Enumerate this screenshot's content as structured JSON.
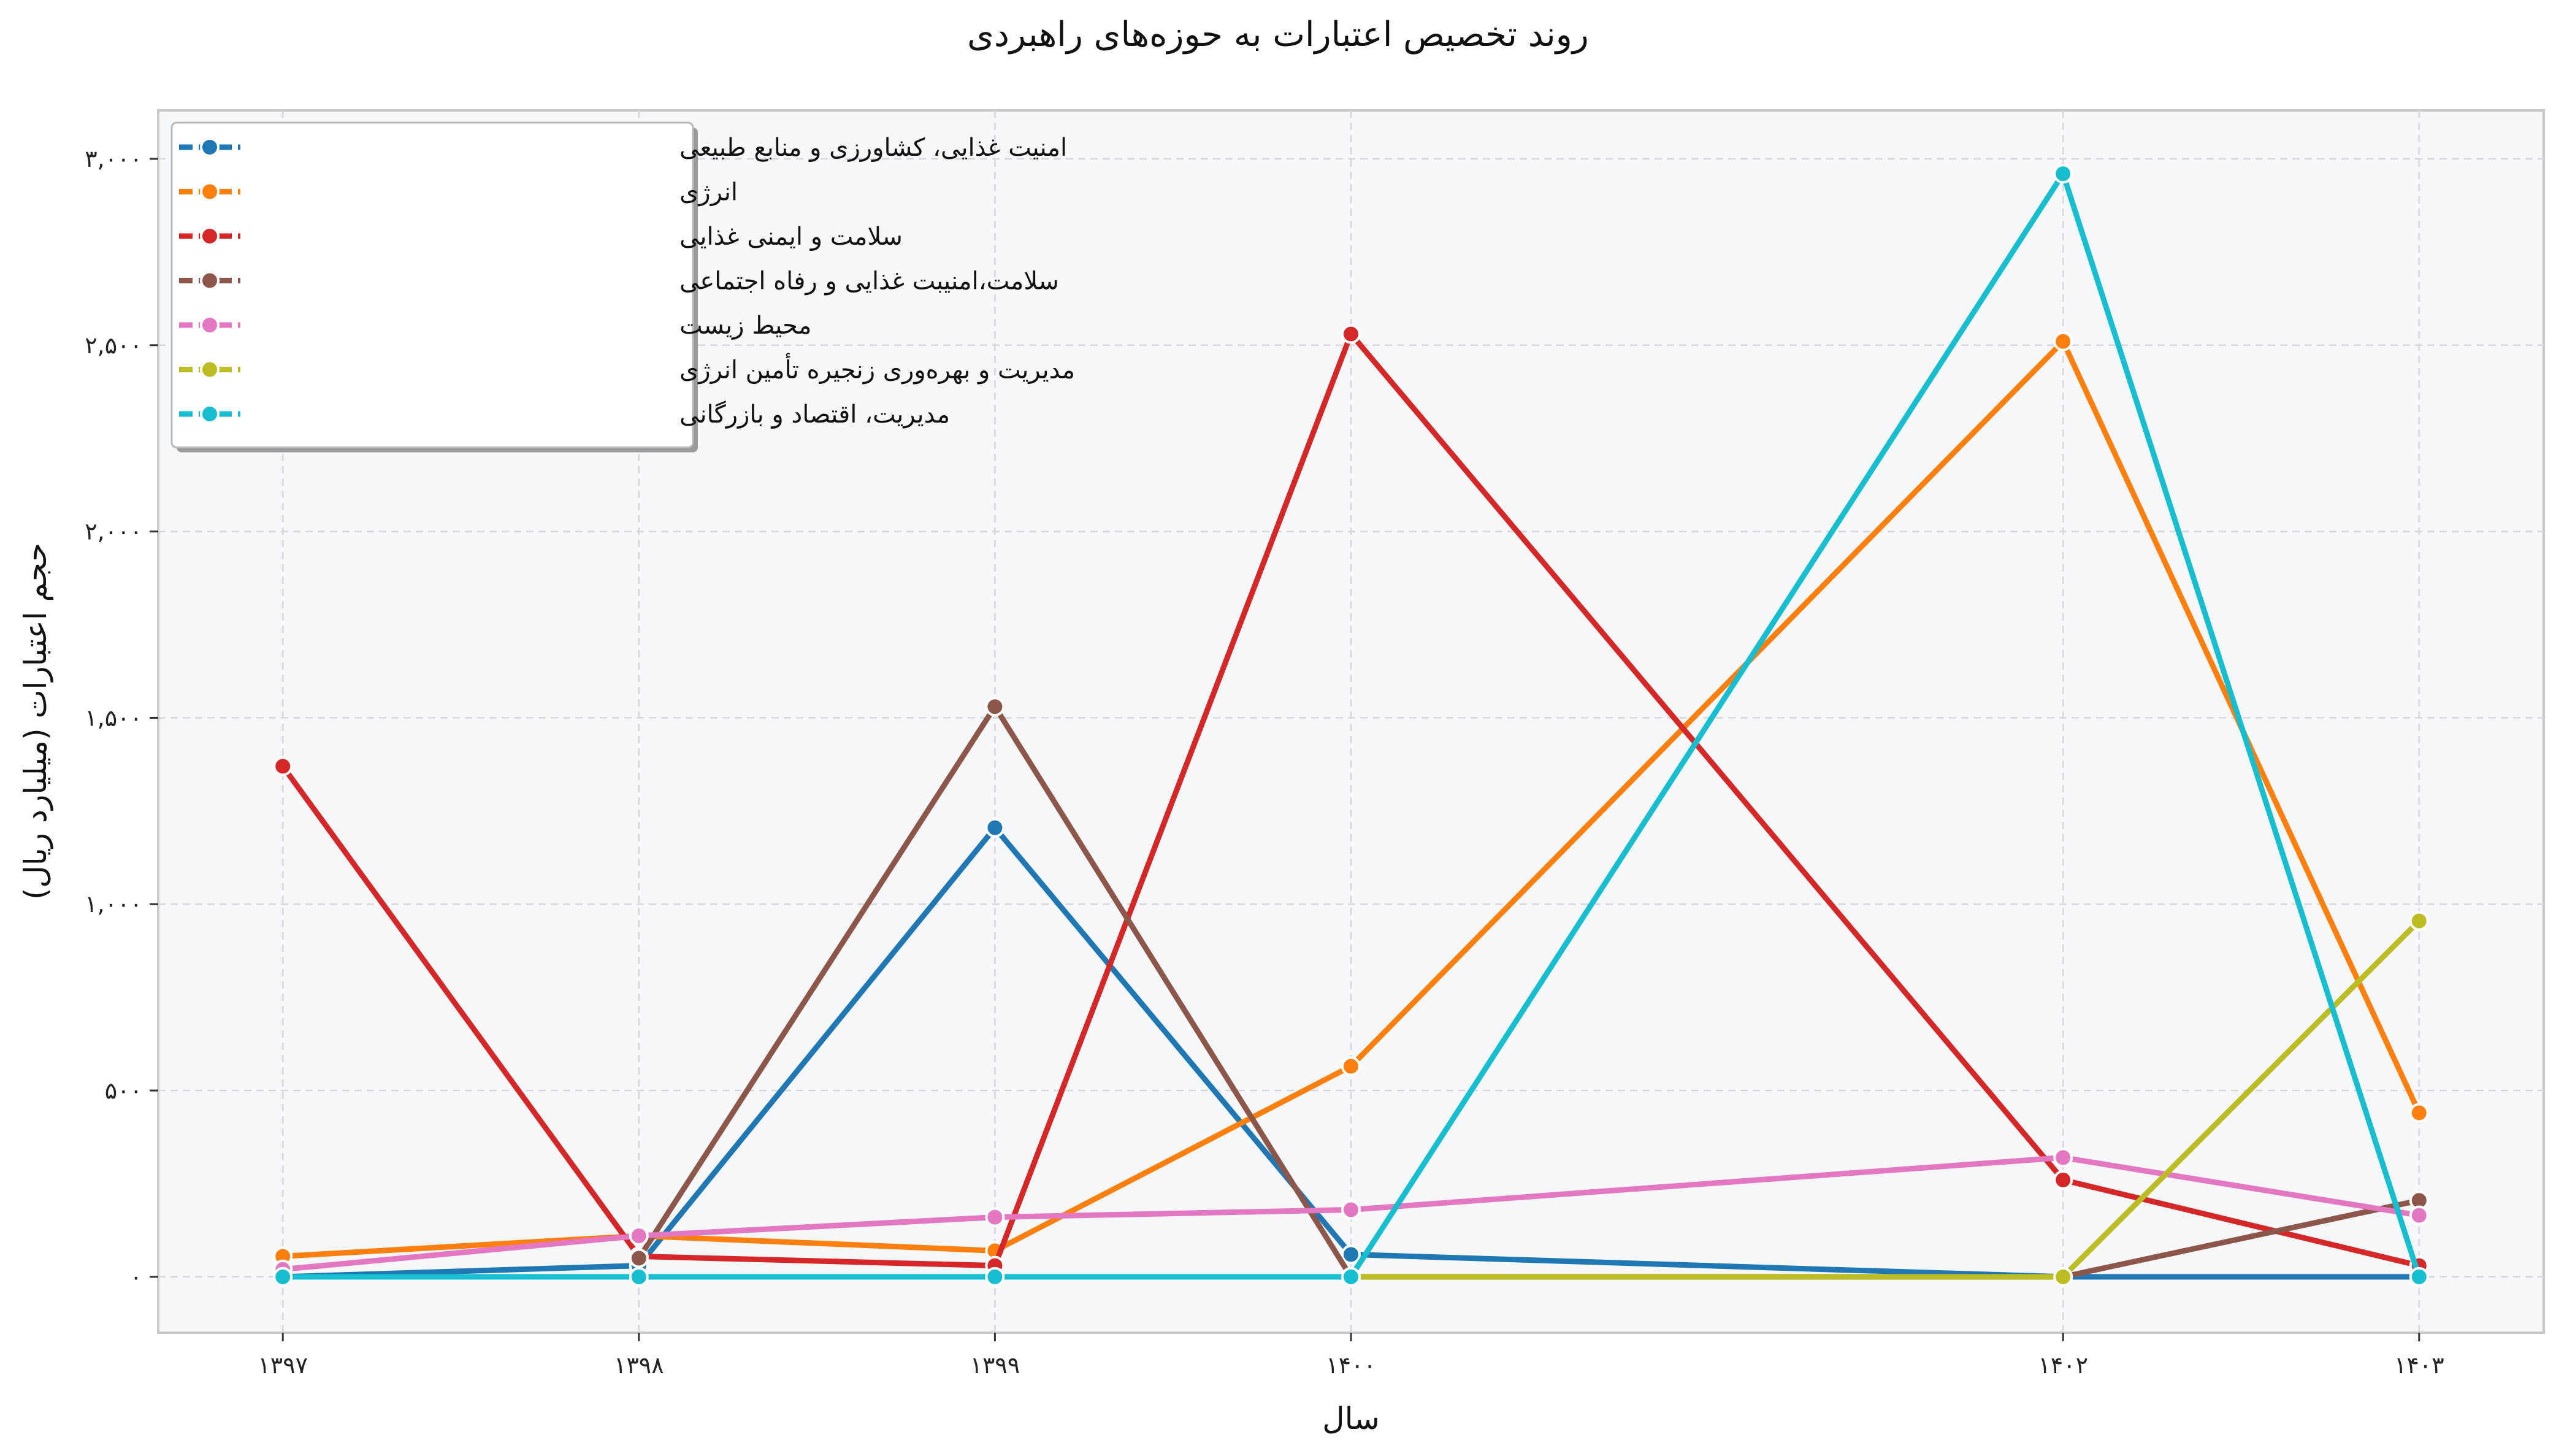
{
  "chart_data": {
    "type": "line",
    "title": "روند تخصیص اعتبارات به حوزه‌های راهبردی",
    "xlabel": "سال",
    "ylabel": "حجم اعتبارات (میلیارد ریال)",
    "x": [
      1397,
      1398,
      1399,
      1400,
      1402,
      1403
    ],
    "x_tick_labels": [
      "۱۳۹۷",
      "۱۳۹۸",
      "۱۳۹۹",
      "۱۴۰۰",
      "۱۴۰۲",
      "۱۴۰۳"
    ],
    "ylim": [
      -150,
      3130
    ],
    "y_ticks": [
      0,
      500,
      1000,
      1500,
      2000,
      2500,
      3000
    ],
    "y_tick_labels": [
      "۰",
      "۵۰۰",
      "۱,۰۰۰",
      "۱,۵۰۰",
      "۲,۰۰۰",
      "۲,۵۰۰",
      "۳,۰۰۰"
    ],
    "grid": true,
    "legend_position": "top-left",
    "series": [
      {
        "name": "امنیت غذایی، کشاورزی و منابع طبیعی",
        "color": "#1f77b4",
        "values": [
          0,
          30,
          1205,
          60,
          0,
          0
        ]
      },
      {
        "name": "انرژی",
        "color": "#ff7f0e",
        "values": [
          55,
          110,
          70,
          565,
          2510,
          440
        ]
      },
      {
        "name": "سلامت و ایمنی غذایی",
        "color": "#d62728",
        "values": [
          1370,
          55,
          30,
          2530,
          260,
          30
        ]
      },
      {
        "name": "سلامت،امنیبت غذایی و رفاه اجتماعی",
        "color": "#8c564b",
        "values": [
          null,
          50,
          1530,
          0,
          0,
          205
        ]
      },
      {
        "name": "محیط زیست",
        "color": "#e377c2",
        "values": [
          20,
          110,
          160,
          180,
          320,
          165
        ]
      },
      {
        "name": "مدیریت و بهره‌وری زنجیره تأمین انرژی",
        "color": "#bcbd22",
        "values": [
          null,
          null,
          null,
          0,
          0,
          955
        ]
      },
      {
        "name": "مدیریت، اقتصاد و بازرگانی",
        "color": "#17becf",
        "values": [
          0,
          0,
          0,
          0,
          2960,
          0
        ]
      }
    ]
  }
}
